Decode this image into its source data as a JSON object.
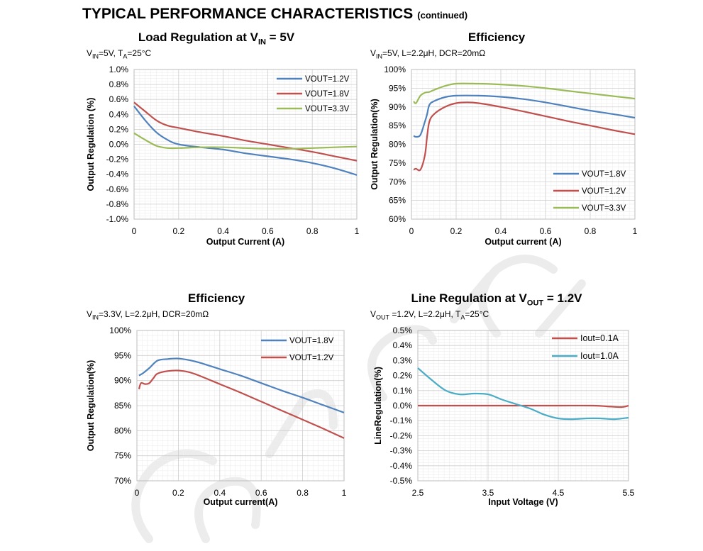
{
  "header": {
    "title": "TYPICAL PERFORMANCE CHARACTERISTICS",
    "subtitle": "(continued)"
  },
  "watermark": {
    "text": "COULD CHIC TECH",
    "color": "#e8e8e8"
  },
  "chart_data": [
    {
      "type": "line",
      "title": "Load Regulation at VIN = 5V",
      "title_parts": [
        "Load Regulation at V",
        "IN",
        " = 5V"
      ],
      "conditions": "VIN=5V, TA=25°C",
      "conditions_parts": [
        "V",
        "IN",
        "=5V, T",
        "A",
        "=25°C"
      ],
      "xlabel": "Output Current (A)",
      "ylabel": "Output Regulation (%)",
      "xlim": [
        0,
        1
      ],
      "ylim": [
        -1.0,
        1.0
      ],
      "xticks": [
        0,
        0.2,
        0.4,
        0.6,
        0.8,
        1
      ],
      "xtick_labels": [
        "0",
        "0.2",
        "0.4",
        "0.6",
        "0.8",
        "1"
      ],
      "yticks": [
        1.0,
        0.8,
        0.6,
        0.4,
        0.2,
        0.0,
        -0.2,
        -0.4,
        -0.6,
        -0.8,
        -1.0
      ],
      "ytick_labels": [
        "1.0%",
        "0.8%",
        "0.6%",
        "0.4%",
        "0.2%",
        "0.0%",
        "-0.2%",
        "-0.4%",
        "-0.6%",
        "-0.8%",
        "-1.0%"
      ],
      "legend_position": "top-right",
      "series": [
        {
          "name": "VOUT=1.2V",
          "color": "#4f81bd",
          "x": [
            0,
            0.05,
            0.1,
            0.15,
            0.2,
            0.3,
            0.4,
            0.5,
            0.6,
            0.7,
            0.8,
            0.9,
            1.0
          ],
          "y": [
            0.51,
            0.32,
            0.16,
            0.06,
            0.0,
            -0.04,
            -0.07,
            -0.12,
            -0.16,
            -0.2,
            -0.25,
            -0.32,
            -0.41
          ]
        },
        {
          "name": "VOUT=1.8V",
          "color": "#c0504d",
          "x": [
            0,
            0.05,
            0.1,
            0.15,
            0.2,
            0.3,
            0.4,
            0.5,
            0.6,
            0.7,
            0.8,
            0.9,
            1.0
          ],
          "y": [
            0.56,
            0.44,
            0.32,
            0.25,
            0.22,
            0.16,
            0.11,
            0.05,
            0.0,
            -0.05,
            -0.1,
            -0.16,
            -0.22
          ]
        },
        {
          "name": "VOUT=3.3V",
          "color": "#9bbb59",
          "x": [
            0,
            0.05,
            0.1,
            0.15,
            0.2,
            0.3,
            0.4,
            0.5,
            0.6,
            0.7,
            0.8,
            0.9,
            1.0
          ],
          "y": [
            0.15,
            0.06,
            -0.02,
            -0.05,
            -0.05,
            -0.04,
            -0.04,
            -0.05,
            -0.06,
            -0.06,
            -0.05,
            -0.04,
            -0.03
          ]
        }
      ]
    },
    {
      "type": "line",
      "title": "Efficiency",
      "title_parts": [
        "Efficiency",
        "",
        ""
      ],
      "conditions": "VIN=5V, L=2.2μH, DCR=20mΩ",
      "conditions_parts": [
        "V",
        "IN",
        "=5V, L=2.2μH, DCR=20mΩ",
        "",
        ""
      ],
      "xlabel": "Output current (A)",
      "ylabel": "Output Regulation(%)",
      "xlim": [
        0,
        1
      ],
      "ylim": [
        60,
        100
      ],
      "xticks": [
        0,
        0.2,
        0.4,
        0.6,
        0.8,
        1
      ],
      "xtick_labels": [
        "0",
        "0.2",
        "0.4",
        "0.6",
        "0.8",
        "1"
      ],
      "yticks": [
        100,
        95,
        90,
        85,
        80,
        75,
        70,
        65,
        60
      ],
      "ytick_labels": [
        "100%",
        "95%",
        "90%",
        "85%",
        "80%",
        "75%",
        "70%",
        "65%",
        "60%"
      ],
      "legend_position": "bottom-right",
      "series": [
        {
          "name": "VOUT=1.8V",
          "color": "#4f81bd",
          "x": [
            0.01,
            0.02,
            0.04,
            0.06,
            0.07,
            0.08,
            0.1,
            0.15,
            0.2,
            0.3,
            0.4,
            0.5,
            0.6,
            0.7,
            0.8,
            0.9,
            1.0
          ],
          "y": [
            82.3,
            82.0,
            82.5,
            86.0,
            88.0,
            90.5,
            91.5,
            92.6,
            93.0,
            93.0,
            92.7,
            92.1,
            91.2,
            90.1,
            89.0,
            88.1,
            87.1
          ]
        },
        {
          "name": "VOUT=1.2V",
          "color": "#c0504d",
          "x": [
            0.01,
            0.02,
            0.04,
            0.06,
            0.07,
            0.08,
            0.1,
            0.15,
            0.2,
            0.25,
            0.3,
            0.4,
            0.5,
            0.6,
            0.7,
            0.8,
            0.9,
            1.0
          ],
          "y": [
            73.2,
            73.5,
            73.2,
            77.0,
            82.0,
            86.0,
            88.0,
            90.0,
            91.0,
            91.2,
            91.0,
            90.0,
            88.8,
            87.5,
            86.2,
            85.0,
            83.8,
            82.7
          ]
        },
        {
          "name": "VOUT=3.3V",
          "color": "#9bbb59",
          "x": [
            0.01,
            0.02,
            0.04,
            0.06,
            0.08,
            0.1,
            0.15,
            0.2,
            0.3,
            0.4,
            0.5,
            0.6,
            0.7,
            0.8,
            0.9,
            1.0
          ],
          "y": [
            91.5,
            91.0,
            93.0,
            93.8,
            94.0,
            94.5,
            95.6,
            96.2,
            96.2,
            96.0,
            95.6,
            95.0,
            94.3,
            93.6,
            92.9,
            92.2
          ]
        }
      ]
    },
    {
      "type": "line",
      "title": "Efficiency",
      "title_parts": [
        "Efficiency",
        "",
        ""
      ],
      "conditions": "VIN=3.3V, L=2.2μH, DCR=20mΩ",
      "conditions_parts": [
        "V",
        "IN",
        "=3.3V, L=2.2μH, DCR=20mΩ",
        "",
        ""
      ],
      "xlabel": "Output current(A)",
      "ylabel": "Output Regulation(%)",
      "xlim": [
        0,
        1
      ],
      "ylim": [
        70,
        100
      ],
      "xticks": [
        0,
        0.2,
        0.4,
        0.6,
        0.8,
        1
      ],
      "xtick_labels": [
        "0",
        "0.2",
        "0.4",
        "0.6",
        "0.8",
        "1"
      ],
      "yticks": [
        100,
        95,
        90,
        85,
        80,
        75,
        70
      ],
      "ytick_labels": [
        "100%",
        "95%",
        "90%",
        "85%",
        "80%",
        "75%",
        "70%"
      ],
      "legend_position": "top-right",
      "series": [
        {
          "name": "VOUT=1.8V",
          "color": "#4f81bd",
          "x": [
            0.01,
            0.03,
            0.06,
            0.1,
            0.15,
            0.2,
            0.25,
            0.3,
            0.4,
            0.5,
            0.6,
            0.7,
            0.8,
            0.9,
            1.0
          ],
          "y": [
            91.0,
            91.5,
            92.5,
            94.0,
            94.3,
            94.4,
            94.1,
            93.6,
            92.3,
            91.0,
            89.5,
            88.0,
            86.6,
            85.1,
            83.6
          ]
        },
        {
          "name": "VOUT=1.2V",
          "color": "#c0504d",
          "x": [
            0.01,
            0.02,
            0.04,
            0.06,
            0.08,
            0.1,
            0.15,
            0.2,
            0.25,
            0.3,
            0.4,
            0.5,
            0.6,
            0.7,
            0.8,
            0.9,
            1.0
          ],
          "y": [
            88.3,
            89.5,
            89.3,
            89.5,
            90.5,
            91.4,
            91.9,
            92.0,
            91.7,
            91.0,
            89.3,
            87.6,
            85.8,
            84.0,
            82.2,
            80.4,
            78.5
          ]
        }
      ]
    },
    {
      "type": "line",
      "title": "Line Regulation at VOUT = 1.2V",
      "title_parts": [
        "Line Regulation at V",
        "OUT",
        " = 1.2V"
      ],
      "conditions": "VOUT =1.2V, L=2.2μH, TA=25°C",
      "conditions_parts": [
        "V",
        "OUT",
        " =1.2V, L=2.2μH, T",
        "A",
        "=25°C"
      ],
      "xlabel": "Input Voltage (V)",
      "ylabel": "LineRegulation(%)",
      "xlim": [
        2.5,
        5.5
      ],
      "ylim": [
        -0.5,
        0.5
      ],
      "xticks": [
        2.5,
        3.5,
        4.5,
        5.5
      ],
      "xtick_labels": [
        "2.5",
        "3.5",
        "4.5",
        "5.5"
      ],
      "yticks": [
        0.5,
        0.4,
        0.3,
        0.2,
        0.1,
        0.0,
        -0.1,
        -0.2,
        -0.3,
        -0.4,
        -0.5
      ],
      "ytick_labels": [
        "0.5%",
        "0.4%",
        "0.3%",
        "0.2%",
        "0.1%",
        "0.0%",
        "-0.1%",
        "-0.2%",
        "-0.3%",
        "-0.4%",
        "-0.5%"
      ],
      "legend_position": "top-right",
      "series": [
        {
          "name": "Iout=0.1A",
          "color": "#c0504d",
          "x": [
            2.5,
            3.0,
            3.5,
            4.0,
            4.5,
            5.0,
            5.2,
            5.4,
            5.5
          ],
          "y": [
            0.0,
            0.0,
            0.0,
            0.0,
            0.0,
            0.0,
            -0.005,
            -0.01,
            0.0
          ]
        },
        {
          "name": "Iout=1.0A",
          "color": "#4bacc6",
          "x": [
            2.5,
            2.7,
            2.9,
            3.1,
            3.3,
            3.5,
            3.7,
            3.9,
            4.1,
            4.3,
            4.5,
            4.7,
            4.9,
            5.1,
            5.3,
            5.5
          ],
          "y": [
            0.25,
            0.17,
            0.1,
            0.075,
            0.08,
            0.075,
            0.04,
            0.01,
            -0.02,
            -0.06,
            -0.085,
            -0.09,
            -0.085,
            -0.085,
            -0.09,
            -0.08
          ]
        }
      ]
    }
  ]
}
